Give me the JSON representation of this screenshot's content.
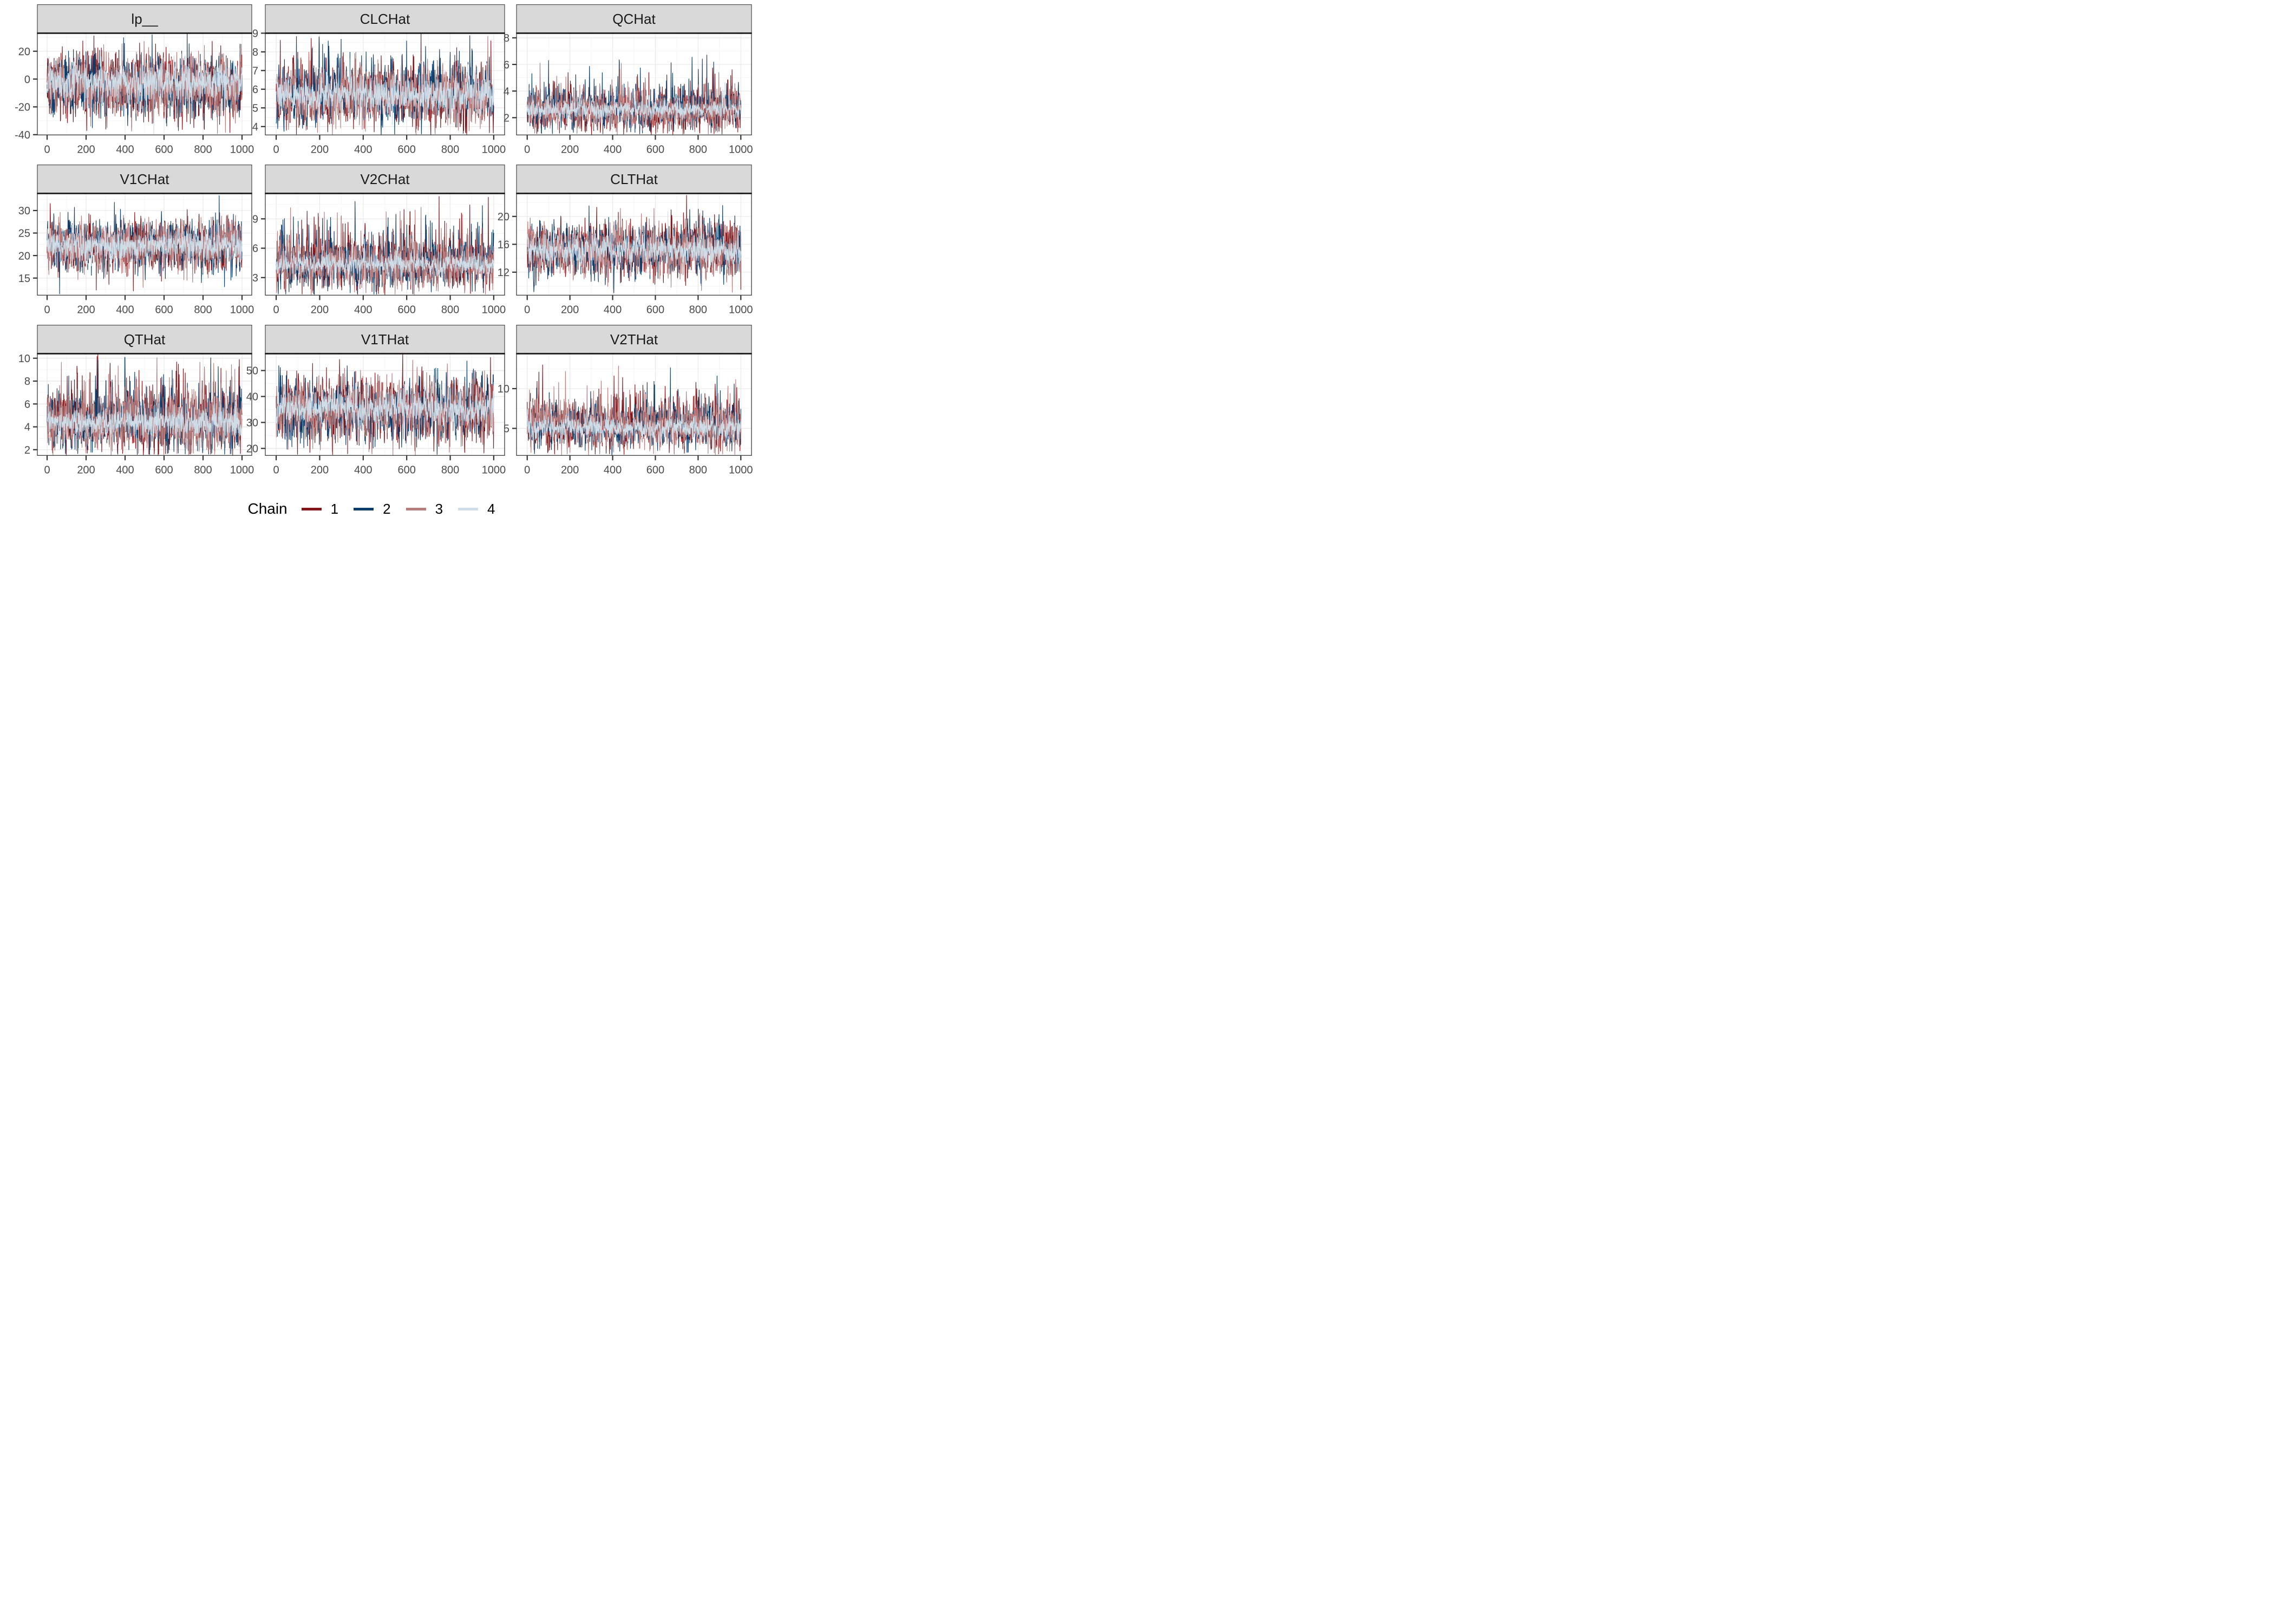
{
  "legend": {
    "title": "Chain",
    "entries": [
      {
        "label": "1",
        "color": "#841519"
      },
      {
        "label": "2",
        "color": "#0D3D6B"
      },
      {
        "label": "3",
        "color": "#B77C7C"
      },
      {
        "label": "4",
        "color": "#CEDDE8"
      }
    ]
  },
  "style": {
    "background": "#FFFFFF",
    "strip_bg": "#D9D9D9",
    "strip_text": "#1A1A1A",
    "strip_underline": "#1A1A1A",
    "panel_border": "#3C3C3C",
    "grid_major": "#E8E8E8",
    "grid_minor": "#F3F3F3",
    "tick_color": "#333333",
    "axis_text": "#4A4A4A"
  },
  "chart_data": {
    "type": "line",
    "description": "MCMC trace plots: 4 chains x 1000 post-warmup iterations, faceted by parameter, legend at bottom",
    "grid": "on",
    "legend_position": "bottom",
    "x": {
      "ticks": [
        0,
        200,
        400,
        600,
        800,
        1000
      ],
      "domain": [
        -50,
        1050
      ],
      "n_iterations": 1000
    },
    "facets": [
      {
        "title": "lp__",
        "y_ticks": [
          20,
          0,
          -20,
          -40
        ],
        "y_domain": [
          -40.2,
          33
        ],
        "chains": [
          {
            "chain": 1,
            "mean": -5,
            "sd": 11
          },
          {
            "chain": 2,
            "mean": -5,
            "sd": 11
          },
          {
            "chain": 3,
            "mean": -5,
            "sd": 10.5
          },
          {
            "chain": 4,
            "mean": -2,
            "sd": 6.5
          }
        ],
        "skew": 0
      },
      {
        "title": "CLCHat",
        "y_ticks": [
          9,
          8,
          7,
          6,
          5,
          4
        ],
        "y_domain": [
          3.55,
          9.0
        ],
        "chains": [
          {
            "chain": 1,
            "mean": 5.75,
            "sd": 0.8
          },
          {
            "chain": 2,
            "mean": 5.8,
            "sd": 0.8
          },
          {
            "chain": 3,
            "mean": 5.7,
            "sd": 0.8
          },
          {
            "chain": 4,
            "mean": 5.75,
            "sd": 0.5
          }
        ],
        "skew": 0.3
      },
      {
        "title": "QCHat",
        "y_ticks": [
          8,
          6,
          4,
          2
        ],
        "y_domain": [
          0.7,
          8.35
        ],
        "chains": [
          {
            "chain": 1,
            "mean": 2.65,
            "sd": 0.75
          },
          {
            "chain": 2,
            "mean": 2.7,
            "sd": 0.78
          },
          {
            "chain": 3,
            "mean": 2.6,
            "sd": 0.75
          },
          {
            "chain": 4,
            "mean": 2.6,
            "sd": 0.32
          }
        ],
        "skew": 1
      },
      {
        "title": "V1CHat",
        "y_ticks": [
          30,
          25,
          20,
          15
        ],
        "y_domain": [
          11.2,
          33.8
        ],
        "chains": [
          {
            "chain": 1,
            "mean": 22.2,
            "sd": 2.7
          },
          {
            "chain": 2,
            "mean": 22.4,
            "sd": 2.7
          },
          {
            "chain": 3,
            "mean": 22.2,
            "sd": 2.7
          },
          {
            "chain": 4,
            "mean": 22.3,
            "sd": 1.7
          }
        ],
        "skew": 0
      },
      {
        "title": "V2CHat",
        "y_ticks": [
          9,
          6,
          3
        ],
        "y_domain": [
          1.2,
          11.6
        ],
        "chains": [
          {
            "chain": 1,
            "mean": 4.5,
            "sd": 1.35
          },
          {
            "chain": 2,
            "mean": 4.5,
            "sd": 1.3
          },
          {
            "chain": 3,
            "mean": 4.4,
            "sd": 1.35
          },
          {
            "chain": 4,
            "mean": 4.3,
            "sd": 0.55
          }
        ],
        "skew": 1
      },
      {
        "title": "CLTHat",
        "y_ticks": [
          20,
          16,
          12
        ],
        "y_domain": [
          8.7,
          23.3
        ],
        "chains": [
          {
            "chain": 1,
            "mean": 15.3,
            "sd": 1.9
          },
          {
            "chain": 2,
            "mean": 15.3,
            "sd": 1.9
          },
          {
            "chain": 3,
            "mean": 15.2,
            "sd": 1.9
          },
          {
            "chain": 4,
            "mean": 15.2,
            "sd": 1.05
          }
        ],
        "skew": 0
      },
      {
        "title": "QTHat",
        "y_ticks": [
          10,
          8,
          6,
          4,
          2
        ],
        "y_domain": [
          1.5,
          10.4
        ],
        "chains": [
          {
            "chain": 1,
            "mean": 4.7,
            "sd": 1.35
          },
          {
            "chain": 2,
            "mean": 4.6,
            "sd": 1.3
          },
          {
            "chain": 3,
            "mean": 4.6,
            "sd": 1.35
          },
          {
            "chain": 4,
            "mean": 4.4,
            "sd": 0.6
          }
        ],
        "skew": 0.8
      },
      {
        "title": "V1THat",
        "y_ticks": [
          50,
          40,
          30,
          20
        ],
        "y_domain": [
          17.3,
          56.5
        ],
        "chains": [
          {
            "chain": 1,
            "mean": 35,
            "sd": 6
          },
          {
            "chain": 2,
            "mean": 35,
            "sd": 6
          },
          {
            "chain": 3,
            "mean": 34.5,
            "sd": 6
          },
          {
            "chain": 4,
            "mean": 35.5,
            "sd": 3.2
          }
        ],
        "skew": 0
      },
      {
        "title": "V2THat",
        "y_ticks": [
          10,
          5
        ],
        "y_domain": [
          1.6,
          14.4
        ],
        "chains": [
          {
            "chain": 1,
            "mean": 5.5,
            "sd": 1.5
          },
          {
            "chain": 2,
            "mean": 5.4,
            "sd": 1.45
          },
          {
            "chain": 3,
            "mean": 5.5,
            "sd": 1.5
          },
          {
            "chain": 4,
            "mean": 5.1,
            "sd": 0.7
          }
        ],
        "skew": 0.8
      }
    ]
  }
}
